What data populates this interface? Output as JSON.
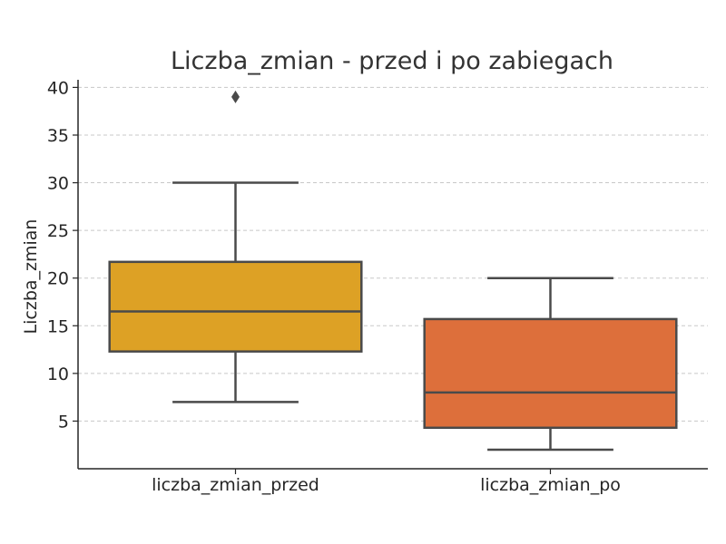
{
  "chart_data": {
    "type": "box",
    "title": "Liczba_zmian - przed i po zabiegach",
    "xlabel": "",
    "ylabel": "Liczba_zmian",
    "ylim": [
      0.0,
      40.8
    ],
    "yticks": [
      5,
      10,
      15,
      20,
      25,
      30,
      35,
      40
    ],
    "grid": true,
    "categories": [
      "liczba_zmian_przed",
      "liczba_zmian_po"
    ],
    "boxes": [
      {
        "category": "liczba_zmian_przed",
        "color": "#DDA125",
        "whisker_low": 7,
        "q1": 12.3,
        "median": 16.5,
        "q3": 21.7,
        "whisker_high": 30,
        "outliers": [
          39
        ]
      },
      {
        "category": "liczba_zmian_po",
        "color": "#DD6F3B",
        "whisker_low": 2,
        "q1": 4.3,
        "median": 8,
        "q3": 15.7,
        "whisker_high": 20,
        "outliers": []
      }
    ]
  }
}
